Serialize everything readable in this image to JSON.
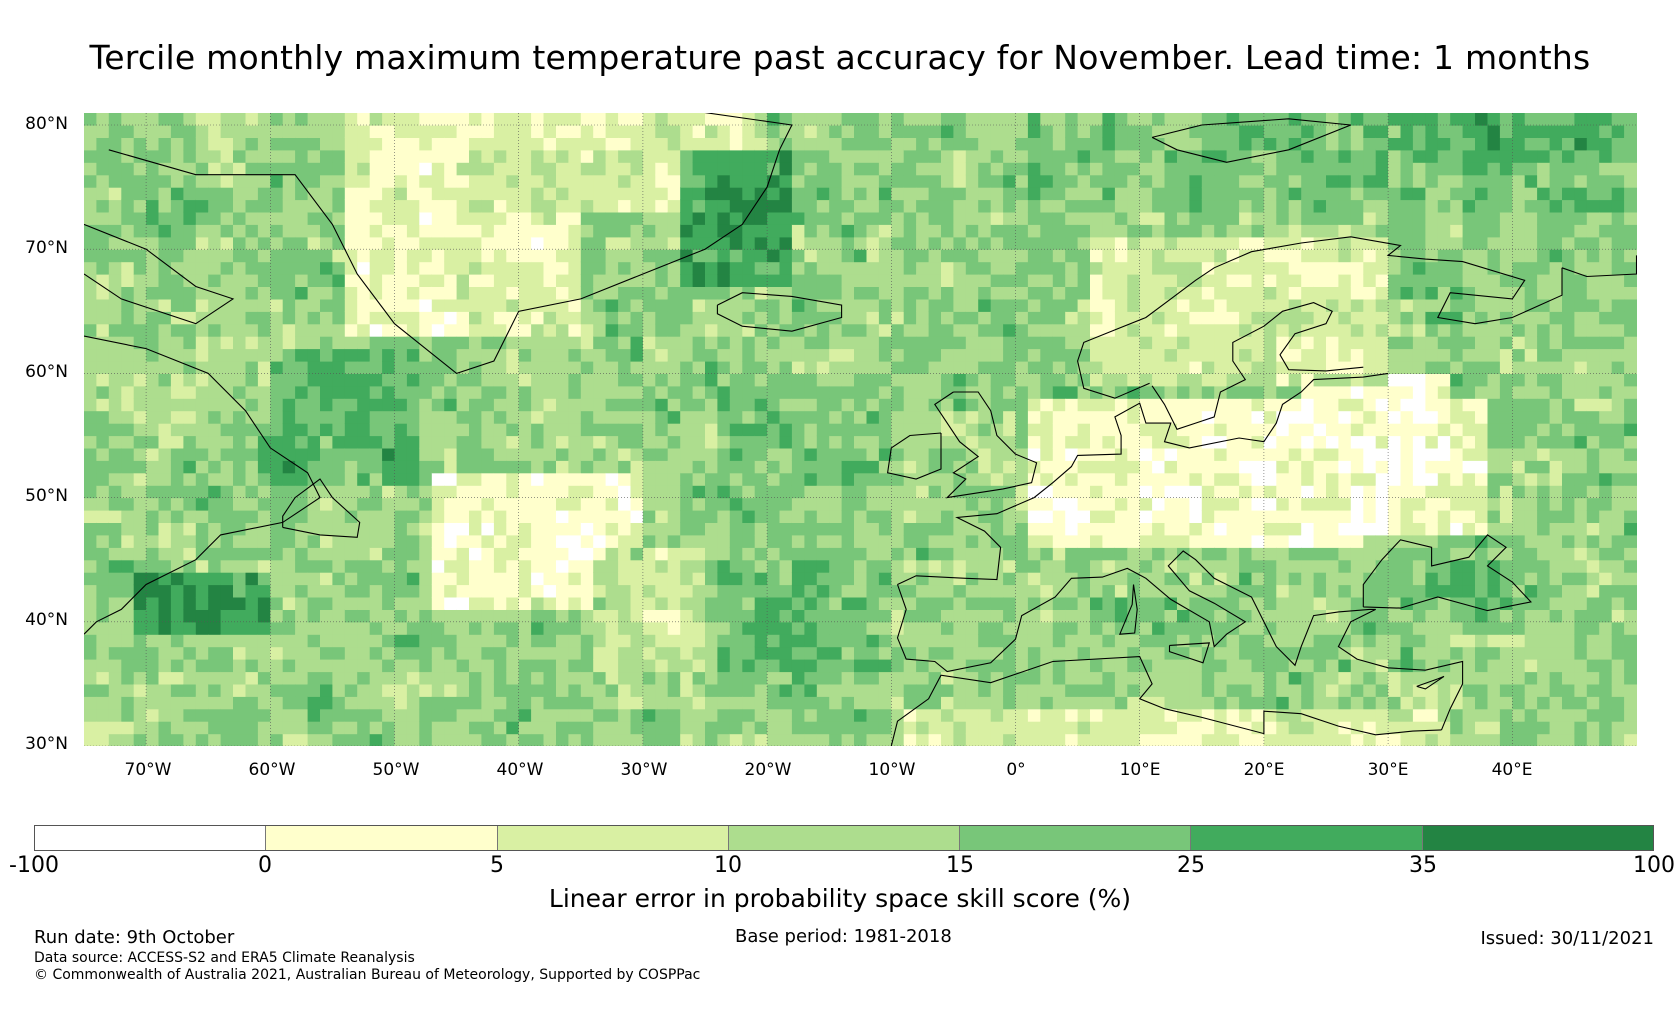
{
  "title": "Tercile monthly maximum temperature past accuracy for November. Lead time: 1 months",
  "map": {
    "lat_labels": [
      "80°N",
      "70°N",
      "60°N",
      "50°N",
      "40°N",
      "30°N"
    ],
    "lon_labels": [
      "70°W",
      "60°W",
      "50°W",
      "40°W",
      "30°W",
      "20°W",
      "10°W",
      "0°",
      "10°E",
      "20°E",
      "30°E",
      "40°E"
    ],
    "lat_range": [
      30,
      81
    ],
    "lon_range": [
      -75,
      50
    ],
    "colors": {
      "neg": "#ffffff",
      "c0_5": "#ffffcc",
      "c5_10": "#d9f0a3",
      "c10_15": "#addd8e",
      "c15_25": "#78c679",
      "c25_35": "#41ab5d",
      "c35_100": "#238443"
    }
  },
  "colorbar": {
    "ticks": [
      "-100",
      "0",
      "5",
      "10",
      "15",
      "25",
      "35",
      "100"
    ],
    "colors": [
      "#ffffff",
      "#ffffcc",
      "#d9f0a3",
      "#addd8e",
      "#78c679",
      "#41ab5d",
      "#238443"
    ],
    "label": "Linear error in probability space skill score (%)"
  },
  "footer": {
    "run_date": "Run date: 9th October",
    "base_period": "Base period: 1981-2018",
    "issued": "Issued: 30/11/2021",
    "data_source": "Data source: ACCESS-S2 and ERA5 Climate Reanalysis",
    "copyright": "© Commonwealth of Australia 2021, Australian Bureau of Meteorology, Supported by COSPPac"
  }
}
